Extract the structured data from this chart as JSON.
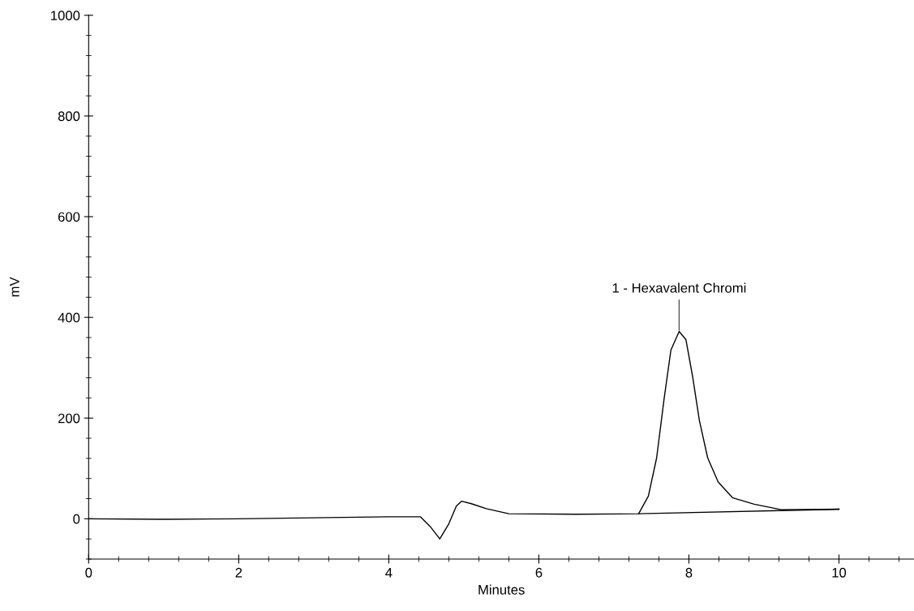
{
  "chart_data": {
    "type": "line",
    "xlabel": "Minutes",
    "ylabel": "mV",
    "xlim": [
      0,
      11
    ],
    "xticks": [
      0,
      2,
      4,
      6,
      8,
      10
    ],
    "ylim": [
      -80,
      1000
    ],
    "yticks": [
      0,
      200,
      400,
      600,
      800,
      1000
    ],
    "grid": false,
    "legend": false,
    "marker": "none",
    "line_style": "solid",
    "series": [
      {
        "color": "#000000",
        "x": [
          0,
          1,
          2,
          3,
          4,
          4.42,
          4.55,
          4.68,
          4.8,
          4.9,
          4.97,
          5.1,
          5.3,
          5.6,
          6.5,
          7.33,
          7.46,
          7.57,
          7.67,
          7.76,
          7.87,
          7.96,
          8.05,
          8.14,
          8.25,
          8.39,
          8.58,
          8.87,
          9.23,
          10
        ],
        "values": [
          0,
          -1,
          0,
          2,
          4,
          4,
          -15,
          -40,
          -10,
          25,
          35,
          30,
          20,
          10,
          9,
          10,
          45,
          121,
          239,
          335,
          372,
          356,
          282,
          195,
          121,
          73,
          42,
          29,
          18,
          19
        ]
      },
      {
        "color": "#000000",
        "x": [
          7.33,
          10
        ],
        "values": [
          10,
          19
        ]
      }
    ],
    "annotations": [
      {
        "text": "1 - Hexavalent Chromi",
        "x": 7.87,
        "y": 372
      }
    ]
  }
}
